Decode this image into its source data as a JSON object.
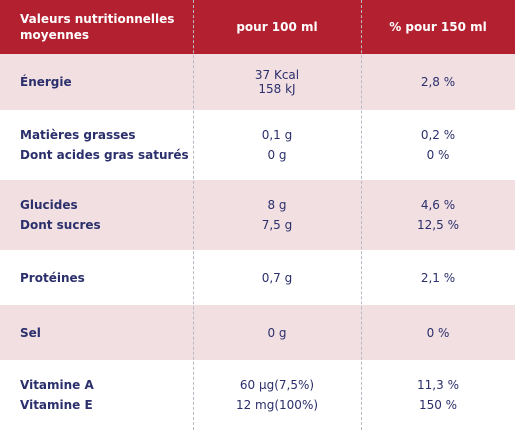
{
  "header": {
    "col1_line1": "Valeurs nutritionnelles",
    "col1_line2": "moyennes",
    "col2": "pour 100 ml",
    "col3": "% pour 150 ml"
  },
  "rows": [
    {
      "labels": [
        "Énergie"
      ],
      "per100": [
        "37 Kcal",
        "158 kJ"
      ],
      "per150": [
        "2,8 %"
      ]
    },
    {
      "labels": [
        "Matières grasses",
        "Dont acides gras saturés"
      ],
      "per100": [
        "0,1 g",
        "0 g"
      ],
      "per150": [
        "0,2 %",
        "0 %"
      ]
    },
    {
      "labels": [
        "Glucides",
        "Dont sucres"
      ],
      "per100": [
        "8 g",
        "7,5 g"
      ],
      "per150": [
        "4,6 %",
        "12,5 %"
      ]
    },
    {
      "labels": [
        "Protéines"
      ],
      "per100": [
        "0,7 g"
      ],
      "per150": [
        "2,1 %"
      ]
    },
    {
      "labels": [
        "Sel"
      ],
      "per100": [
        "0 g"
      ],
      "per150": [
        "0 %"
      ]
    },
    {
      "labels": [
        "Vitamine A",
        "Vitamine E"
      ],
      "per100": [
        "60 µg(7,5%)",
        "12 mg(100%)"
      ],
      "per150": [
        "11,3 %",
        "150 %"
      ]
    }
  ],
  "colors": {
    "header_bg": "#b3202f",
    "row_pink": "#f2dfe2",
    "text": "#2b2f6b"
  }
}
